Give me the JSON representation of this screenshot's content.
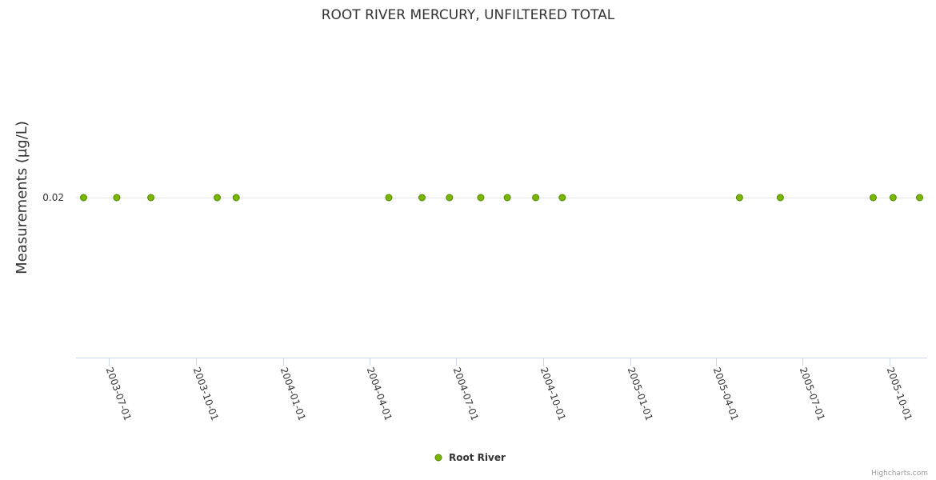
{
  "chart_data": {
    "type": "scatter",
    "title": "ROOT RIVER MERCURY, UNFILTERED TOTAL",
    "xlabel": "",
    "ylabel": "Measurements (µg/L)",
    "xlim": [
      "2003-05-27",
      "2005-11-10"
    ],
    "x_ticks": [
      "2003-07-01",
      "2003-10-01",
      "2004-01-01",
      "2004-04-01",
      "2004-07-01",
      "2004-10-01",
      "2005-01-01",
      "2005-04-01",
      "2005-07-01",
      "2005-10-01"
    ],
    "y_ticks": [
      "0.02"
    ],
    "grid": true,
    "legend_position": "bottom-center",
    "series": [
      {
        "name": "Root River",
        "color": "#7cb500",
        "points": [
          {
            "x": "2003-06-04",
            "y": 0.02
          },
          {
            "x": "2003-07-09",
            "y": 0.02
          },
          {
            "x": "2003-08-14",
            "y": 0.02
          },
          {
            "x": "2003-10-23",
            "y": 0.02
          },
          {
            "x": "2003-11-12",
            "y": 0.02
          },
          {
            "x": "2004-04-21",
            "y": 0.02
          },
          {
            "x": "2004-05-26",
            "y": 0.02
          },
          {
            "x": "2004-06-24",
            "y": 0.02
          },
          {
            "x": "2004-07-27",
            "y": 0.02
          },
          {
            "x": "2004-08-24",
            "y": 0.02
          },
          {
            "x": "2004-09-23",
            "y": 0.02
          },
          {
            "x": "2004-10-21",
            "y": 0.02
          },
          {
            "x": "2005-04-26",
            "y": 0.02
          },
          {
            "x": "2005-06-08",
            "y": 0.02
          },
          {
            "x": "2005-09-14",
            "y": 0.02
          },
          {
            "x": "2005-10-05",
            "y": 0.02
          },
          {
            "x": "2005-11-02",
            "y": 0.02
          }
        ]
      }
    ]
  },
  "credit": "Highcharts.com"
}
